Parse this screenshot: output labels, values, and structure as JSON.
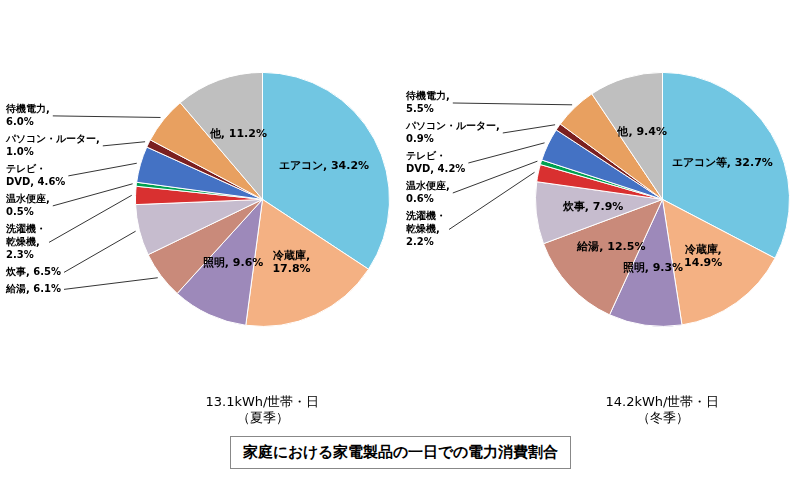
{
  "title": "家庭における家電製品の一日での電力消費割合",
  "chart_data": [
    {
      "type": "pie",
      "title": "13.1kWh/世帯・日\n（夏季）",
      "values": [
        34.2,
        17.8,
        9.6,
        6.1,
        6.5,
        2.3,
        0.5,
        4.6,
        1.0,
        6.0,
        11.2
      ],
      "value_labels": [
        "エアコン, 34.2%",
        "冷蔵庫,\n17.8%",
        "照明, 9.6%",
        "給湯, 6.1%",
        "炊事, 6.5%",
        "洗濯機・\n乾燥機,\n2.3%",
        "温水便座,\n0.5%",
        "テレビ・\nDVD, 4.6%",
        "パソコン・ルーター,\n1.0%",
        "待機電力,\n6.0%",
        "他, 11.2%"
      ],
      "colors": [
        "#71C6E2",
        "#F4B183",
        "#9D89BA",
        "#C98A7A",
        "#C6BCCE",
        "#D93030",
        "#00A050",
        "#4472C4",
        "#7B2020",
        "#E8A060",
        "#BFBFBF"
      ],
      "data_labels": true
    },
    {
      "type": "pie",
      "title": "14.2kWh/世帯・日\n（冬季）",
      "values": [
        32.7,
        14.9,
        9.3,
        12.5,
        7.9,
        2.2,
        0.6,
        4.2,
        0.9,
        5.5,
        9.4
      ],
      "value_labels": [
        "エアコン等, 32.7%",
        "冷蔵庫,\n14.9%",
        "照明, 9.3%",
        "給湯, 12.5%",
        "炊事, 7.9%",
        "洗濯機・\n乾燥機,\n2.2%",
        "温水便座,\n0.6%",
        "テレビ・\nDVD, 4.2%",
        "パソコン・ルーター,\n0.9%",
        "待機電力,\n5.5%",
        "他, 9.4%"
      ],
      "colors": [
        "#71C6E2",
        "#F4B183",
        "#9D89BA",
        "#C98A7A",
        "#C6BCCE",
        "#D93030",
        "#00A050",
        "#4472C4",
        "#7B2020",
        "#E8A060",
        "#BFBFBF"
      ],
      "data_labels": true
    }
  ]
}
